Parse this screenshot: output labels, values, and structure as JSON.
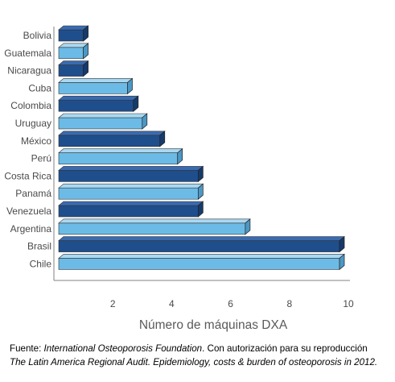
{
  "chart_data": {
    "type": "bar",
    "orientation": "horizontal",
    "categories": [
      "Bolivia",
      "Guatemala",
      "Nicaragua",
      "Cuba",
      "Colombia",
      "Uruguay",
      "México",
      "Perú",
      "Costa Rica",
      "Panamá",
      "Venezuela",
      "Argentina",
      "Brasil",
      "Chile"
    ],
    "values": [
      1,
      1,
      1,
      2.5,
      2.7,
      3,
      3.6,
      4.2,
      4.9,
      4.9,
      4.9,
      6.5,
      9.7,
      9.7
    ],
    "xlabel": "Número de máquinas DXA",
    "ylabel": "",
    "xlim": [
      0,
      10
    ],
    "xticks": [
      "2",
      "4",
      "6",
      "8",
      "10"
    ],
    "grid": false,
    "legend": "none",
    "colors": {
      "dark_front": "#1f4e8c",
      "dark_top": "#3a6bb0",
      "dark_side": "#163a6b",
      "light_front": "#6cbbe6",
      "light_top": "#a9d8f2",
      "light_side": "#4d97c4",
      "axis": "#808080"
    },
    "bar_tone": [
      "dark",
      "light",
      "dark",
      "light",
      "dark",
      "light",
      "dark",
      "light",
      "dark",
      "light",
      "dark",
      "light",
      "dark",
      "light"
    ]
  },
  "caption": {
    "line1_prefix": "Fuente: ",
    "line1_source": "International Osteoporosis Foundation",
    "line1_suffix": ". Con autorización para su reproducción",
    "line2": "The Latin America Regional Audit. Epidemiology, costs & burden of osteoporosis in 2012."
  }
}
